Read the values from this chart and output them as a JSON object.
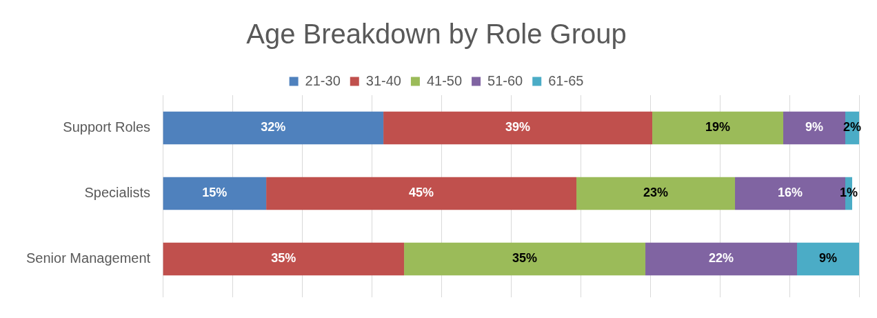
{
  "chart_data": {
    "type": "bar",
    "title": "Age Breakdown by Role Group",
    "orientation": "horizontal",
    "stacked": true,
    "categories": [
      "Support Roles",
      "Specialists",
      "Senior Management"
    ],
    "series": [
      {
        "name": "21-30",
        "color": "#4f81bd",
        "values": [
          32,
          15,
          null
        ],
        "value_labels": [
          "32%",
          "15%",
          null
        ]
      },
      {
        "name": "31-40",
        "color": "#c0504d",
        "values": [
          39,
          45,
          35
        ],
        "value_labels": [
          "39%",
          "45%",
          "35%"
        ]
      },
      {
        "name": "41-50",
        "color": "#9bbb59",
        "values": [
          19,
          23,
          35
        ],
        "value_labels": [
          "19%",
          "23%",
          "35%"
        ]
      },
      {
        "name": "51-60",
        "color": "#8064a2",
        "values": [
          9,
          16,
          22
        ],
        "value_labels": [
          "9%",
          "16%",
          "22%"
        ]
      },
      {
        "name": "61-65",
        "color": "#4bacc6",
        "values": [
          2,
          1,
          9
        ],
        "value_labels": [
          "2%",
          "1%",
          "9%"
        ]
      }
    ],
    "grid": "x",
    "legend": "top"
  }
}
